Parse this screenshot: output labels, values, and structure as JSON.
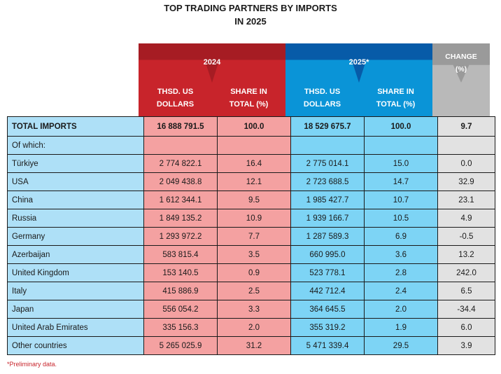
{
  "title": [
    "TOP TRADING PARTNERS BY IMPORTS",
    "IN 2025"
  ],
  "headers": {
    "y2024": "2024",
    "y2025": "2025*",
    "change": [
      "CHANGE",
      "(%)"
    ],
    "dollars": [
      "THSD. US",
      "DOLLARS"
    ],
    "share": [
      "SHARE IN",
      "TOTAL (%)"
    ]
  },
  "rows": [
    {
      "name": "TOTAL IMPORTS",
      "v2024": "16 888 791.5",
      "s2024": "100.0",
      "v2025": "18 529 675.7",
      "s2025": "100.0",
      "chg": "9.7"
    },
    {
      "name": "Of which:",
      "v2024": "",
      "s2024": "",
      "v2025": "",
      "s2025": "",
      "chg": ""
    },
    {
      "name": "Türkiye",
      "v2024": "2 774 822.1",
      "s2024": "16.4",
      "v2025": "2 775 014.1",
      "s2025": "15.0",
      "chg": "0.0"
    },
    {
      "name": "USA",
      "v2024": "2 049 438.8",
      "s2024": "12.1",
      "v2025": "2 723 688.5",
      "s2025": "14.7",
      "chg": "32.9"
    },
    {
      "name": "China",
      "v2024": "1 612 344.1",
      "s2024": "9.5",
      "v2025": "1 985 427.7",
      "s2025": "10.7",
      "chg": "23.1"
    },
    {
      "name": "Russia",
      "v2024": "1 849 135.2",
      "s2024": "10.9",
      "v2025": "1 939 166.7",
      "s2025": "10.5",
      "chg": "4.9"
    },
    {
      "name": "Germany",
      "v2024": "1 293 972.2",
      "s2024": "7.7",
      "v2025": "1 287 589.3",
      "s2025": "6.9",
      "chg": "-0.5"
    },
    {
      "name": "Azerbaijan",
      "v2024": "583 815.4",
      "s2024": "3.5",
      "v2025": "660 995.0",
      "s2025": "3.6",
      "chg": "13.2"
    },
    {
      "name": "United Kingdom",
      "v2024": "153 140.5",
      "s2024": "0.9",
      "v2025": "523 778.1",
      "s2025": "2.8",
      "chg": "242.0"
    },
    {
      "name": "Italy",
      "v2024": "415 886.9",
      "s2024": "2.5",
      "v2025": "442 712.4",
      "s2025": "2.4",
      "chg": "6.5"
    },
    {
      "name": "Japan",
      "v2024": "556 054.2",
      "s2024": "3.3",
      "v2025": "364 645.5",
      "s2025": "2.0",
      "chg": "-34.4"
    },
    {
      "name": "United Arab Emirates",
      "v2024": "335 156.3",
      "s2024": "2.0",
      "v2025": "355 319.2",
      "s2025": "1.9",
      "chg": "6.0"
    },
    {
      "name": "Other countries",
      "v2024": "5 265 025.9",
      "s2024": "31.2",
      "v2025": "5 471 339.4",
      "s2025": "29.5",
      "chg": "3.9"
    }
  ],
  "footnote": "*Preliminary data.",
  "colors": {
    "red": "#c8242b",
    "darkRed": "#a61c23",
    "blue": "#0a94d7",
    "darkBlue": "#075ba8",
    "grey": "#b9b9b9"
  }
}
